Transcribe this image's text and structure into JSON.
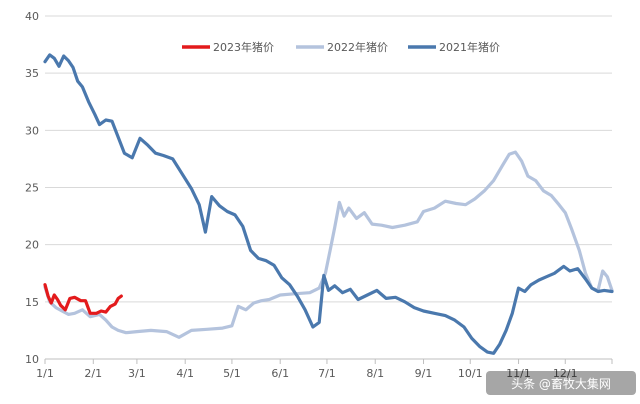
{
  "chart_data": {
    "type": "line",
    "title": "",
    "xlabel": "",
    "ylabel": "",
    "ylim": [
      10,
      40
    ],
    "xlim": [
      "1/1",
      "12/31"
    ],
    "yticks": [
      10,
      15,
      20,
      25,
      30,
      35,
      40
    ],
    "xticks": [
      "1/1",
      "2/1",
      "3/1",
      "4/1",
      "5/1",
      "6/1",
      "7/1",
      "8/1",
      "9/1",
      "10/1",
      "11/1",
      "12/1"
    ],
    "grid": "horizontal",
    "legend": "top-center",
    "series": [
      {
        "name": "2023年猪价",
        "color": "#e31a1c",
        "points": [
          [
            "1/1",
            16.5
          ],
          [
            "1/3",
            15.5
          ],
          [
            "1/5",
            14.9
          ],
          [
            "1/7",
            15.6
          ],
          [
            "1/9",
            15.2
          ],
          [
            "1/11",
            14.7
          ],
          [
            "1/14",
            14.3
          ],
          [
            "1/17",
            15.3
          ],
          [
            "1/20",
            15.4
          ],
          [
            "1/24",
            15.1
          ],
          [
            "1/27",
            15.1
          ],
          [
            "1/30",
            14.0
          ],
          [
            "2/3",
            14.0
          ],
          [
            "2/6",
            14.2
          ],
          [
            "2/9",
            14.1
          ],
          [
            "2/12",
            14.6
          ],
          [
            "2/15",
            14.8
          ],
          [
            "2/17",
            15.3
          ],
          [
            "2/19",
            15.5
          ]
        ]
      },
      {
        "name": "2022年猪价",
        "color": "#b4c3dd",
        "points": [
          [
            "1/1",
            16.3
          ],
          [
            "1/4",
            15.0
          ],
          [
            "1/8",
            14.5
          ],
          [
            "1/12",
            14.2
          ],
          [
            "1/16",
            13.9
          ],
          [
            "1/20",
            14.0
          ],
          [
            "1/25",
            14.3
          ],
          [
            "1/30",
            13.7
          ],
          [
            "2/5",
            13.9
          ],
          [
            "2/9",
            13.4
          ],
          [
            "2/13",
            12.8
          ],
          [
            "2/17",
            12.5
          ],
          [
            "2/22",
            12.3
          ],
          [
            "3/1",
            12.4
          ],
          [
            "3/10",
            12.5
          ],
          [
            "3/20",
            12.4
          ],
          [
            "3/28",
            11.9
          ],
          [
            "4/5",
            12.5
          ],
          [
            "4/15",
            12.6
          ],
          [
            "4/25",
            12.7
          ],
          [
            "5/1",
            12.9
          ],
          [
            "5/5",
            14.6
          ],
          [
            "5/10",
            14.3
          ],
          [
            "5/15",
            14.9
          ],
          [
            "5/20",
            15.1
          ],
          [
            "5/25",
            15.2
          ],
          [
            "6/1",
            15.6
          ],
          [
            "6/10",
            15.7
          ],
          [
            "6/20",
            15.8
          ],
          [
            "6/26",
            16.2
          ],
          [
            "6/30",
            17.5
          ],
          [
            "7/3",
            19.5
          ],
          [
            "7/6",
            21.5
          ],
          [
            "7/9",
            23.7
          ],
          [
            "7/12",
            22.5
          ],
          [
            "7/15",
            23.2
          ],
          [
            "7/20",
            22.3
          ],
          [
            "7/25",
            22.8
          ],
          [
            "7/30",
            21.8
          ],
          [
            "8/5",
            21.7
          ],
          [
            "8/12",
            21.5
          ],
          [
            "8/20",
            21.7
          ],
          [
            "8/28",
            22.0
          ],
          [
            "9/1",
            22.9
          ],
          [
            "9/8",
            23.2
          ],
          [
            "9/15",
            23.8
          ],
          [
            "9/22",
            23.6
          ],
          [
            "9/28",
            23.5
          ],
          [
            "10/4",
            24.0
          ],
          [
            "10/10",
            24.7
          ],
          [
            "10/16",
            25.6
          ],
          [
            "10/22",
            27.0
          ],
          [
            "10/26",
            27.9
          ],
          [
            "10/30",
            28.1
          ],
          [
            "11/3",
            27.3
          ],
          [
            "11/7",
            26.0
          ],
          [
            "11/12",
            25.6
          ],
          [
            "11/17",
            24.7
          ],
          [
            "11/22",
            24.3
          ],
          [
            "11/27",
            23.5
          ],
          [
            "12/1",
            22.8
          ],
          [
            "12/5",
            21.4
          ],
          [
            "12/10",
            19.5
          ],
          [
            "12/14",
            17.5
          ],
          [
            "12/18",
            16.2
          ],
          [
            "12/22",
            16.0
          ],
          [
            "12/25",
            17.7
          ],
          [
            "12/28",
            17.2
          ],
          [
            "12/31",
            16.0
          ]
        ]
      },
      {
        "name": "2021年猪价",
        "color": "#4a78ad",
        "points": [
          [
            "1/1",
            36.0
          ],
          [
            "1/4",
            36.6
          ],
          [
            "1/7",
            36.3
          ],
          [
            "1/10",
            35.6
          ],
          [
            "1/13",
            36.5
          ],
          [
            "1/16",
            36.1
          ],
          [
            "1/19",
            35.5
          ],
          [
            "1/22",
            34.3
          ],
          [
            "1/25",
            33.8
          ],
          [
            "1/29",
            32.5
          ],
          [
            "2/2",
            31.4
          ],
          [
            "2/5",
            30.5
          ],
          [
            "2/9",
            30.9
          ],
          [
            "2/13",
            30.8
          ],
          [
            "2/17",
            29.4
          ],
          [
            "2/21",
            28.0
          ],
          [
            "2/26",
            27.6
          ],
          [
            "3/3",
            29.3
          ],
          [
            "3/8",
            28.7
          ],
          [
            "3/13",
            28.0
          ],
          [
            "3/18",
            27.8
          ],
          [
            "3/24",
            27.5
          ],
          [
            "3/30",
            26.2
          ],
          [
            "4/5",
            24.9
          ],
          [
            "4/10",
            23.5
          ],
          [
            "4/14",
            21.1
          ],
          [
            "4/18",
            24.2
          ],
          [
            "4/23",
            23.4
          ],
          [
            "4/28",
            22.9
          ],
          [
            "5/3",
            22.6
          ],
          [
            "5/8",
            21.6
          ],
          [
            "5/13",
            19.5
          ],
          [
            "5/18",
            18.8
          ],
          [
            "5/23",
            18.6
          ],
          [
            "5/28",
            18.2
          ],
          [
            "6/2",
            17.1
          ],
          [
            "6/7",
            16.5
          ],
          [
            "6/12",
            15.5
          ],
          [
            "6/17",
            14.3
          ],
          [
            "6/22",
            12.8
          ],
          [
            "6/26",
            13.2
          ],
          [
            "6/29",
            17.3
          ],
          [
            "7/2",
            16.0
          ],
          [
            "7/6",
            16.4
          ],
          [
            "7/11",
            15.8
          ],
          [
            "7/16",
            16.1
          ],
          [
            "7/21",
            15.2
          ],
          [
            "7/27",
            15.6
          ],
          [
            "8/2",
            16.0
          ],
          [
            "8/8",
            15.3
          ],
          [
            "8/14",
            15.4
          ],
          [
            "8/20",
            15.0
          ],
          [
            "8/26",
            14.5
          ],
          [
            "9/1",
            14.2
          ],
          [
            "9/8",
            14.0
          ],
          [
            "9/15",
            13.8
          ],
          [
            "9/21",
            13.4
          ],
          [
            "9/27",
            12.8
          ],
          [
            "10/2",
            11.8
          ],
          [
            "10/7",
            11.1
          ],
          [
            "10/12",
            10.6
          ],
          [
            "10/16",
            10.5
          ],
          [
            "10/20",
            11.3
          ],
          [
            "10/24",
            12.5
          ],
          [
            "10/28",
            14.0
          ],
          [
            "11/1",
            16.2
          ],
          [
            "11/5",
            15.9
          ],
          [
            "11/9",
            16.5
          ],
          [
            "11/14",
            16.9
          ],
          [
            "11/19",
            17.2
          ],
          [
            "11/24",
            17.5
          ],
          [
            "11/30",
            18.1
          ],
          [
            "12/4",
            17.7
          ],
          [
            "12/9",
            17.9
          ],
          [
            "12/14",
            17.0
          ],
          [
            "12/18",
            16.2
          ],
          [
            "12/22",
            15.9
          ],
          [
            "12/26",
            16.0
          ],
          [
            "12/31",
            15.9
          ]
        ]
      }
    ]
  },
  "watermark": "头条 @畜牧大集网"
}
